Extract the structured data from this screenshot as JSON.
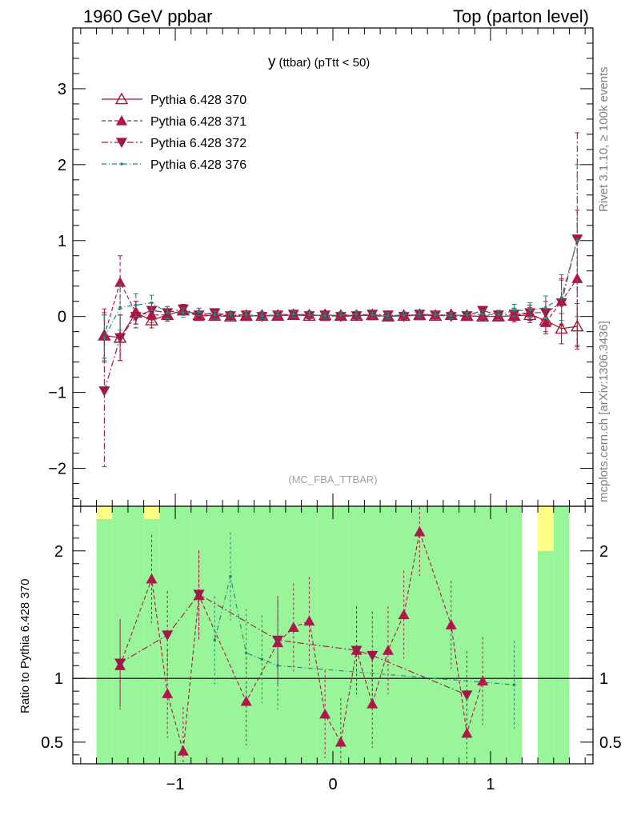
{
  "header": {
    "left_title": "1960 GeV ppbar",
    "right_title": "Top (parton level)"
  },
  "plot": {
    "title_main": "y",
    "title_sub": "(ttbar)  (pTtt < 50)",
    "watermark": "(MC_FBA_TTBAR)",
    "side_rivet": "Rivet 3.1.10, ≥ 100k events",
    "side_mcplots": "mcplots.cern.ch [arXiv:1306.3436]",
    "ratio_ylabel": "Ratio to Pythia 6.428 370"
  },
  "colors": {
    "s370": "#a5152d",
    "s371": "#b0174a",
    "s372": "#a01848",
    "s376": "#1b8a79",
    "band_green": "#99f599",
    "band_yellow": "#ffff88"
  },
  "chart_data": {
    "type": "line",
    "x": [
      -1.45,
      -1.35,
      -1.25,
      -1.15,
      -1.05,
      -0.95,
      -0.85,
      -0.75,
      -0.65,
      -0.55,
      -0.45,
      -0.35,
      -0.25,
      -0.15,
      -0.05,
      0.05,
      0.15,
      0.25,
      0.35,
      0.45,
      0.55,
      0.65,
      0.75,
      0.85,
      0.95,
      1.05,
      1.15,
      1.25,
      1.35,
      1.45,
      1.55
    ],
    "xlim": [
      -1.65,
      1.65
    ],
    "main_ylim": [
      -2.5,
      3.8
    ],
    "main_yticks": [
      -2,
      -1,
      0,
      1,
      2,
      3
    ],
    "xticks": [
      -1,
      0,
      1
    ],
    "legend_position": "top-left",
    "series": [
      {
        "name": "Pythia 6.428 370",
        "marker": "triangle-open",
        "values": [
          -0.25,
          -0.28,
          0.05,
          -0.05,
          0.02,
          0.08,
          0.02,
          0.01,
          0.0,
          0.01,
          0.01,
          0.01,
          0.02,
          0.01,
          0.02,
          0.01,
          0.01,
          0.02,
          0.0,
          0.01,
          0.02,
          0.01,
          0.02,
          0.01,
          0.0,
          0.0,
          0.01,
          0.02,
          -0.05,
          -0.16,
          -0.13
        ],
        "errors": [
          0.3,
          0.3,
          0.15,
          0.1,
          0.08,
          0.06,
          0.05,
          0.05,
          0.04,
          0.04,
          0.04,
          0.04,
          0.04,
          0.04,
          0.04,
          0.04,
          0.04,
          0.04,
          0.04,
          0.04,
          0.04,
          0.04,
          0.04,
          0.04,
          0.05,
          0.06,
          0.08,
          0.1,
          0.15,
          0.2,
          0.3
        ]
      },
      {
        "name": "Pythia 6.428 371",
        "marker": "triangle-up",
        "values": [
          -0.25,
          0.45,
          0.05,
          0.02,
          0.02,
          0.08,
          0.0,
          0.02,
          0.01,
          0.0,
          0.02,
          0.01,
          0.02,
          0.03,
          0.0,
          0.01,
          0.02,
          0.01,
          0.0,
          0.02,
          0.01,
          0.02,
          0.02,
          0.0,
          0.01,
          0.0,
          0.01,
          0.05,
          -0.08,
          0.2,
          0.5
        ],
        "errors": [
          0.35,
          0.35,
          0.15,
          0.1,
          0.08,
          0.06,
          0.05,
          0.05,
          0.04,
          0.04,
          0.04,
          0.04,
          0.04,
          0.04,
          0.04,
          0.04,
          0.04,
          0.04,
          0.04,
          0.04,
          0.04,
          0.04,
          0.04,
          0.04,
          0.05,
          0.06,
          0.08,
          0.1,
          0.15,
          0.3,
          0.9
        ],
        "ratio": [
          null,
          1.1,
          null,
          1.78,
          0.88,
          0.43,
          1.65,
          null,
          null,
          0.82,
          null,
          1.28,
          1.4,
          1.45,
          0.72,
          0.5,
          1.22,
          0.8,
          1.22,
          1.5,
          2.15,
          null,
          1.42,
          0.57,
          0.98,
          null,
          null,
          null,
          null,
          null,
          null
        ]
      },
      {
        "name": "Pythia 6.428 372",
        "marker": "triangle-down",
        "values": [
          -0.98,
          -0.28,
          0.0,
          0.08,
          0.05,
          0.1,
          0.02,
          0.05,
          0.01,
          0.02,
          0.0,
          0.02,
          0.03,
          0.01,
          0.02,
          0.0,
          0.01,
          0.03,
          0.02,
          0.0,
          0.03,
          0.02,
          0.0,
          0.01,
          0.08,
          0.02,
          0.03,
          0.05,
          0.05,
          0.18,
          1.02
        ],
        "errors": [
          1.0,
          0.3,
          0.15,
          0.1,
          0.08,
          0.06,
          0.05,
          0.05,
          0.04,
          0.04,
          0.04,
          0.04,
          0.04,
          0.04,
          0.04,
          0.04,
          0.04,
          0.04,
          0.04,
          0.04,
          0.04,
          0.04,
          0.04,
          0.04,
          0.05,
          0.06,
          0.08,
          0.1,
          0.15,
          0.3,
          1.4
        ],
        "ratio": [
          null,
          1.12,
          null,
          null,
          1.34,
          null,
          1.66,
          null,
          null,
          null,
          null,
          1.3,
          null,
          null,
          null,
          null,
          1.22,
          1.18,
          null,
          null,
          null,
          null,
          null,
          0.87,
          null,
          null,
          null,
          null,
          null,
          null,
          null
        ]
      },
      {
        "name": "Pythia 6.428 376",
        "marker": "dot",
        "values": [
          -0.28,
          0.12,
          0.15,
          0.18,
          0.05,
          0.05,
          0.06,
          0.02,
          0.03,
          0.02,
          0.01,
          0.02,
          0.03,
          0.02,
          0.01,
          0.02,
          0.03,
          0.02,
          0.01,
          0.02,
          0.03,
          0.02,
          0.01,
          0.02,
          0.03,
          0.02,
          0.08,
          0.08,
          0.12,
          0.25,
          1.0
        ],
        "errors": [
          0.3,
          0.3,
          0.15,
          0.1,
          0.08,
          0.06,
          0.05,
          0.05,
          0.04,
          0.04,
          0.04,
          0.04,
          0.04,
          0.04,
          0.04,
          0.04,
          0.04,
          0.04,
          0.04,
          0.04,
          0.04,
          0.04,
          0.04,
          0.04,
          0.05,
          0.06,
          0.08,
          0.1,
          0.15,
          0.3,
          1.0
        ],
        "ratio": [
          null,
          null,
          null,
          null,
          null,
          null,
          null,
          1.3,
          1.8,
          1.2,
          1.15,
          1.1,
          null,
          null,
          null,
          null,
          null,
          null,
          null,
          null,
          null,
          null,
          null,
          null,
          null,
          null,
          0.95,
          null,
          null,
          null,
          null
        ]
      }
    ],
    "ratio_ylim": [
      0.33,
      2.35
    ],
    "ratio_yticks": [
      0.5,
      1,
      2
    ],
    "bands": {
      "green_lo": [
        0.33,
        0.33,
        0.33,
        0.33,
        0.33,
        0.33,
        0.33,
        0.33,
        0.33,
        0.33,
        0.33,
        0.33,
        0.33,
        0.33,
        0.33,
        0.33,
        0.33,
        0.33,
        0.33,
        0.33,
        0.33,
        0.33,
        0.33,
        0.33,
        0.33,
        0.33,
        0.33,
        null,
        0.33,
        0.33,
        null
      ],
      "green_hi": [
        2.25,
        2.35,
        2.35,
        2.25,
        2.35,
        2.35,
        2.35,
        2.35,
        2.35,
        2.35,
        2.35,
        2.35,
        2.35,
        2.35,
        2.35,
        2.35,
        2.35,
        2.35,
        2.35,
        2.35,
        2.35,
        2.35,
        2.35,
        2.35,
        2.35,
        2.35,
        2.35,
        null,
        2.0,
        2.35,
        null
      ],
      "yellow_lo": [
        0.33,
        0.33,
        0.33,
        0.33,
        0.33,
        0.33,
        0.33,
        0.33,
        0.33,
        0.33,
        0.33,
        0.33,
        0.33,
        0.33,
        0.33,
        0.33,
        0.33,
        0.33,
        0.33,
        0.33,
        0.33,
        0.33,
        0.33,
        0.33,
        0.33,
        0.33,
        0.33,
        null,
        0.33,
        0.33,
        null
      ],
      "yellow_hi": [
        2.35,
        2.35,
        2.35,
        2.35,
        2.35,
        2.35,
        2.35,
        2.35,
        2.35,
        2.35,
        2.35,
        2.35,
        2.35,
        2.35,
        2.35,
        2.35,
        2.35,
        2.35,
        2.35,
        2.35,
        2.35,
        2.35,
        2.35,
        2.35,
        2.35,
        2.35,
        2.35,
        null,
        2.35,
        2.35,
        null
      ]
    }
  }
}
